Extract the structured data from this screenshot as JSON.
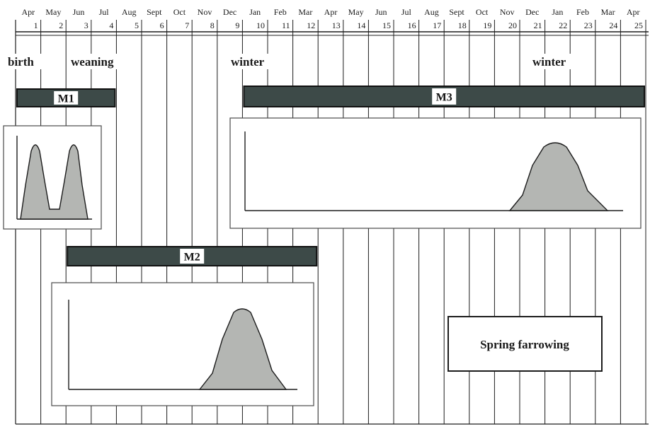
{
  "month_labels": [
    "Apr",
    "May",
    "Jun",
    "Jul",
    "Aug",
    "Sept",
    "Oct",
    "Nov",
    "Dec",
    "Jan",
    "Feb",
    "Mar",
    "Apr",
    "May",
    "Jun",
    "Jul",
    "Aug",
    "Sept",
    "Oct",
    "Nov",
    "Dec",
    "Jan",
    "Feb",
    "Mar",
    "Apr"
  ],
  "month_numbers": [
    "1",
    "2",
    "3",
    "4",
    "5",
    "6",
    "7",
    "8",
    "9",
    "10",
    "11",
    "12",
    "13",
    "14",
    "15",
    "16",
    "17",
    "18",
    "19",
    "20",
    "21",
    "22",
    "23",
    "24",
    "25"
  ],
  "events": [
    {
      "label": "birth",
      "month": 1
    },
    {
      "label": "weaning",
      "month": 3
    },
    {
      "label": "winter",
      "month": 10
    },
    {
      "label": "winter",
      "month": 22
    }
  ],
  "bars": [
    {
      "label": "M1",
      "start_month": 1,
      "end_month": 4
    },
    {
      "label": "M2",
      "start_month": 3,
      "end_month": 12
    },
    {
      "label": "M3",
      "start_month": 10,
      "end_month": 25
    }
  ],
  "legend_box": {
    "label": "Spring farrowing"
  },
  "colors": {
    "bar_fill": "#3d4a48",
    "curve_fill": "#b4b6b3",
    "grid_line": "#1c1c1c",
    "label_bg": "#ffffff"
  }
}
